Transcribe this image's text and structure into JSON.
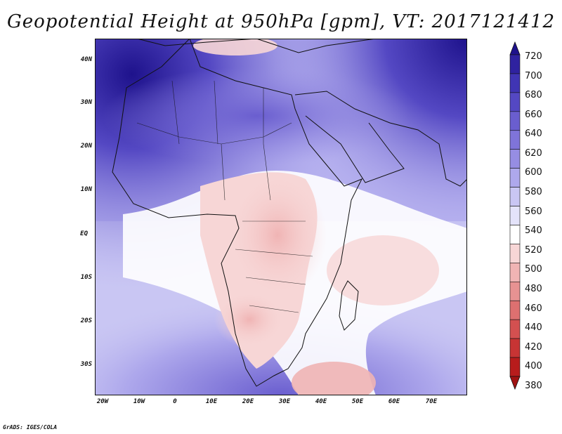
{
  "title": "Geopotential Height at 950hPa [gpm], VT: 2017121412",
  "footer": "GrADS: IGES/COLA",
  "latitude_labels": [
    "40N",
    "30N",
    "20N",
    "10N",
    "EQ",
    "10S",
    "20S",
    "30S"
  ],
  "latitude_values": [
    40,
    30,
    20,
    10,
    0,
    -10,
    -20,
    -30
  ],
  "longitude_labels": [
    "20W",
    "10W",
    "0",
    "10E",
    "20E",
    "30E",
    "40E",
    "50E",
    "60E",
    "70E"
  ],
  "longitude_values": [
    -20,
    -10,
    0,
    10,
    20,
    30,
    40,
    50,
    60,
    70
  ],
  "colorbar": {
    "levels": [
      "720",
      "700",
      "680",
      "660",
      "640",
      "620",
      "600",
      "580",
      "560",
      "540",
      "520",
      "500",
      "480",
      "460",
      "440",
      "420",
      "400",
      "380"
    ],
    "colors": [
      "#1e128c",
      "#2f22a0",
      "#4035b4",
      "#5448c3",
      "#6a5ecf",
      "#7f74d9",
      "#968de3",
      "#aea8ec",
      "#c9c6f3",
      "#e4e3fa",
      "#ffffff",
      "#f7d6d6",
      "#f0b4b4",
      "#e79292",
      "#dd7070",
      "#d35050",
      "#c73434",
      "#b71c1c",
      "#a01212"
    ]
  }
}
